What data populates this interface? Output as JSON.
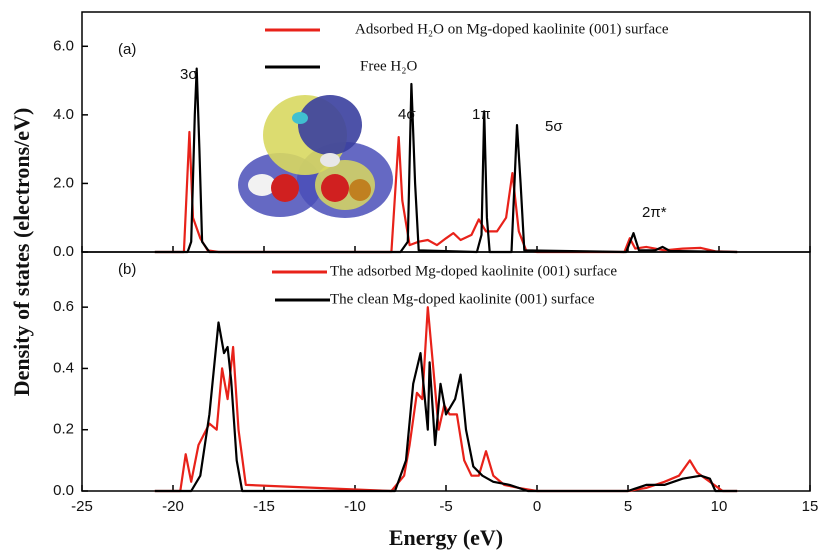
{
  "chart_data": [
    {
      "type": "line",
      "y_label": "Density of states (electrons/eV)",
      "annotations": [
        "(a)",
        "3σ",
        "4σ",
        "1π",
        "5σ",
        "2π*"
      ],
      "xlim": [
        -25,
        15
      ],
      "xticks": [
        -25,
        -20,
        -15,
        -10,
        -5,
        0,
        5,
        10,
        15
      ],
      "ylim": [
        0,
        7
      ],
      "yticks": [
        {
          "value": 0,
          "label": "0.0"
        },
        {
          "value": 2,
          "label": "2.0"
        },
        {
          "value": 4,
          "label": "4.0"
        },
        {
          "value": 6,
          "label": "6.0"
        }
      ],
      "series": [
        {
          "name": "Adsorbed H₂O on Mg-doped kaolinite (001) surface",
          "color": "#e8221a",
          "x": [
            -21,
            -19.4,
            -19.1,
            -18.9,
            -18.5,
            -18.1,
            -17.5,
            -8,
            -7.6,
            -7.4,
            -7.0,
            -6.5,
            -6.0,
            -5.5,
            -5.0,
            -4.6,
            -4.2,
            -3.6,
            -3.2,
            -2.8,
            -2.2,
            -1.7,
            -1.35,
            -1.0,
            -0.6,
            0,
            4.8,
            5.1,
            5.4,
            6,
            7,
            8,
            9,
            9.8,
            11
          ],
          "values": [
            0,
            0,
            3.5,
            1.0,
            0.4,
            0.05,
            0,
            0,
            3.35,
            1.5,
            0.2,
            0.3,
            0.35,
            0.2,
            0.4,
            0.55,
            0.35,
            0.5,
            0.95,
            0.6,
            0.6,
            1.0,
            2.3,
            0.6,
            0.05,
            0,
            0,
            0.4,
            0.1,
            0.15,
            0.05,
            0.1,
            0.12,
            0.02,
            0
          ]
        },
        {
          "name": "Free H₂O",
          "color": "#000000",
          "x": [
            -21,
            -19.2,
            -19.0,
            -18.8,
            -18.7,
            -18.55,
            -18.4,
            -18.0,
            -7.5,
            -7.1,
            -6.9,
            -6.7,
            -6.5,
            -3.3,
            -3.05,
            -2.9,
            -2.75,
            -2.6,
            -1.4,
            -1.1,
            -0.9,
            -0.7,
            4.9,
            5.3,
            5.6,
            6.5,
            6.9,
            7.3,
            11
          ],
          "values": [
            0,
            0,
            0.3,
            4.0,
            5.35,
            3.0,
            0.3,
            0,
            0,
            0.3,
            4.9,
            2.0,
            0.05,
            0,
            0.5,
            4.1,
            1.0,
            0,
            0,
            3.7,
            2.0,
            0.05,
            0,
            0.55,
            0.05,
            0.05,
            0.15,
            0.03,
            0
          ]
        }
      ]
    },
    {
      "type": "line",
      "x_label": "Energy (eV)",
      "annotations": [
        "(b)"
      ],
      "xlim": [
        -25,
        15
      ],
      "xticks": [
        -25,
        -20,
        -15,
        -10,
        -5,
        0,
        5,
        10,
        15
      ],
      "ylim": [
        0,
        0.78
      ],
      "yticks": [
        {
          "value": 0,
          "label": "0.0"
        },
        0.2,
        0.4,
        0.6
      ],
      "series": [
        {
          "name": "The adsorbed Mg-doped kaolinite (001) surface",
          "color": "#e8221a",
          "x": [
            -21,
            -19.6,
            -19.3,
            -19.0,
            -18.6,
            -18.0,
            -17.6,
            -17.3,
            -17.0,
            -16.7,
            -16.4,
            -16.0,
            -8,
            -7.3,
            -7.0,
            -6.6,
            -6.3,
            -6.0,
            -5.7,
            -5.4,
            -5.1,
            -4.8,
            -4.4,
            -4.0,
            -3.6,
            -3.2,
            -2.8,
            -2.4,
            -1.8,
            -1,
            0,
            5,
            6,
            7,
            7.8,
            8.4,
            8.8,
            9.5,
            10.2,
            11
          ],
          "values": [
            0,
            0,
            0.12,
            0.03,
            0.15,
            0.22,
            0.2,
            0.4,
            0.3,
            0.47,
            0.2,
            0.02,
            0,
            0.05,
            0.15,
            0.32,
            0.3,
            0.6,
            0.4,
            0.2,
            0.28,
            0.25,
            0.25,
            0.1,
            0.05,
            0.05,
            0.13,
            0.05,
            0.02,
            0.01,
            0,
            0,
            0.01,
            0.03,
            0.05,
            0.1,
            0.06,
            0.03,
            0,
            0
          ]
        },
        {
          "name": "The clean Mg-doped kaolinite (001) surface",
          "color": "#000000",
          "x": [
            -21,
            -19,
            -18.5,
            -18.0,
            -17.5,
            -17.2,
            -17.0,
            -16.8,
            -16.5,
            -16.2,
            -7.8,
            -7.2,
            -6.8,
            -6.4,
            -6.0,
            -5.9,
            -5.6,
            -5.3,
            -5.0,
            -4.5,
            -4.2,
            -3.9,
            -3.5,
            -3.0,
            -2.4,
            -1.5,
            -0.5,
            5,
            6,
            7,
            8,
            9,
            9.5,
            9.8,
            11
          ],
          "values": [
            0,
            0,
            0.05,
            0.25,
            0.55,
            0.45,
            0.47,
            0.36,
            0.1,
            0,
            0,
            0.1,
            0.35,
            0.45,
            0.2,
            0.42,
            0.15,
            0.35,
            0.25,
            0.3,
            0.38,
            0.2,
            0.08,
            0.05,
            0.03,
            0.02,
            0,
            0,
            0.02,
            0.02,
            0.04,
            0.05,
            0.04,
            0,
            0
          ]
        }
      ]
    }
  ]
}
